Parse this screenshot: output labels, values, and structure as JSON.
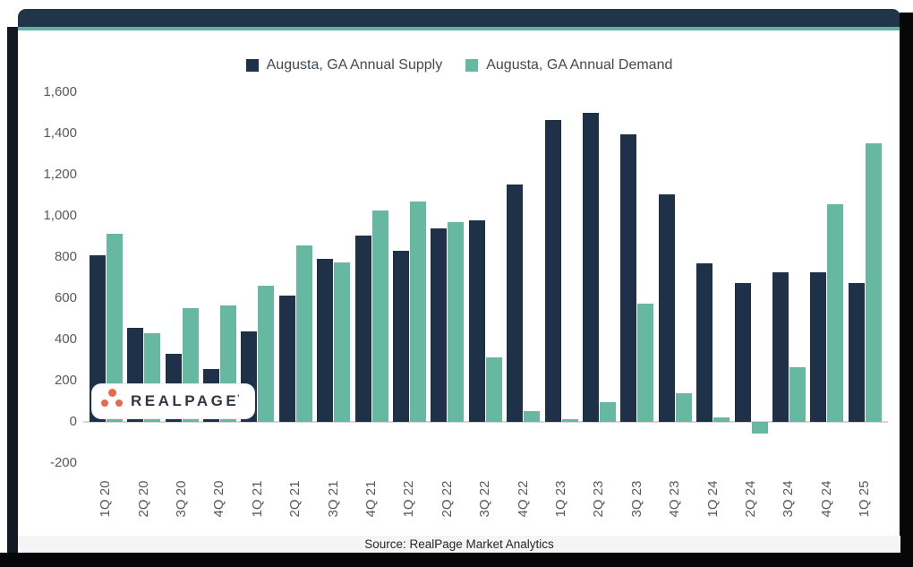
{
  "colors": {
    "supply": "#1f3149",
    "demand": "#66b8a1",
    "header_bar": "#213449",
    "accent_line": "#5fb2a0",
    "frame_left": "#141a24",
    "frame_dark": "#060708",
    "source_band_bg": "#f5f5f6",
    "logo_dot": "#e9694d"
  },
  "legend": {
    "supply_label": "Augusta, GA Annual Supply",
    "demand_label": "Augusta, GA Annual Demand"
  },
  "chart_data": {
    "type": "bar",
    "title": "",
    "xlabel": "",
    "ylabel": "",
    "grid": false,
    "legend_position": "top",
    "ylim": [
      -200,
      1600
    ],
    "ytick_values": [
      1600,
      1400,
      1200,
      1000,
      800,
      600,
      400,
      200,
      0,
      -200
    ],
    "ytick_labels": [
      "1,600",
      "1,400",
      "1,200",
      "1,000",
      "800",
      "600",
      "400",
      "200",
      "0",
      "-200"
    ],
    "categories": [
      "1Q 20",
      "2Q 20",
      "3Q 20",
      "4Q 20",
      "1Q 21",
      "2Q 21",
      "3Q 21",
      "4Q 21",
      "1Q 22",
      "2Q 22",
      "3Q 22",
      "4Q 22",
      "1Q 23",
      "2Q 23",
      "3Q 23",
      "4Q 23",
      "1Q 24",
      "2Q 24",
      "3Q 24",
      "4Q 24",
      "1Q 25"
    ],
    "series": [
      {
        "name": "Augusta, GA Annual Supply",
        "color": "#1f3149",
        "values": [
          810,
          455,
          330,
          255,
          440,
          615,
          790,
          905,
          830,
          940,
          980,
          1150,
          1465,
          1500,
          1395,
          1105,
          770,
          675,
          725,
          725,
          675
        ]
      },
      {
        "name": "Augusta, GA Annual Demand",
        "color": "#66b8a1",
        "values": [
          915,
          430,
          550,
          565,
          660,
          855,
          775,
          1025,
          1070,
          970,
          315,
          50,
          15,
          95,
          575,
          140,
          20,
          -55,
          265,
          1055,
          1350
        ]
      }
    ]
  },
  "logo": {
    "text": "REALPAGE",
    "mark": "'"
  },
  "source": {
    "text": "Source: RealPage Market Analytics"
  }
}
